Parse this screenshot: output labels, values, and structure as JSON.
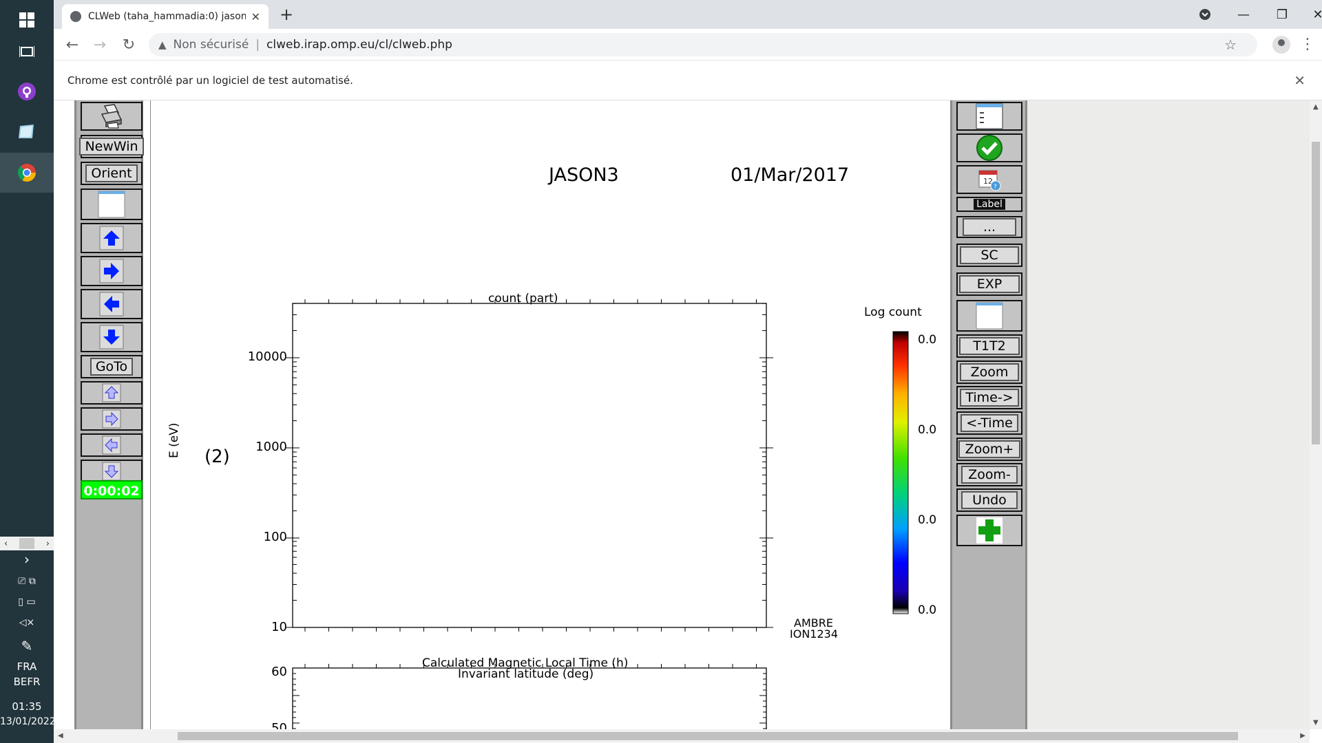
{
  "taskbar": {
    "language": "FRA",
    "keyboard": "BEFR",
    "time": "01:35",
    "date": "13/01/2022"
  },
  "browser": {
    "tab_title": "CLWeb (taha_hammadia:0) jason3",
    "security_label": "Non sécurisé",
    "url": "clweb.irap.omp.eu/cl/clweb.php",
    "infobar_text": "Chrome est contrôlé par un logiciel de test automatisé."
  },
  "left_panel": {
    "newwin_label": "NewWin",
    "orient_label": "Orient",
    "goto_label": "GoTo",
    "timer": "0:00:02"
  },
  "right_panel": {
    "label_label": "Label",
    "dots_label": "...",
    "sc_label": "SC",
    "exp_label": "EXP",
    "t1t2_label": "T1T2",
    "zoom_label": "Zoom",
    "time_fwd_label": "Time->",
    "time_back_label": "<-Time",
    "zoom_plus_label": "Zoom+",
    "zoom_minus_label": "Zoom-",
    "undo_label": "Undo"
  },
  "plot": {
    "satellite": "JASON3",
    "date": "01/Mar/2017",
    "panel1_title": "count (part)",
    "ylabel": "E (eV)",
    "panel_index": "(2)",
    "yticks": [
      "10000",
      "1000",
      "100",
      "10"
    ],
    "colorbar_title": "Log count",
    "colorbar_ticks": [
      "0.0",
      "0.0",
      "0.0",
      "0.0"
    ],
    "instrument_line1": "AMBRE",
    "instrument_line2": "ION1234",
    "panel2_title_line1": "Calculated Magnetic Local Time (h)",
    "panel2_title_line2": "Invariant latitude (deg)",
    "panel2_yticks": [
      "60",
      "50"
    ]
  }
}
